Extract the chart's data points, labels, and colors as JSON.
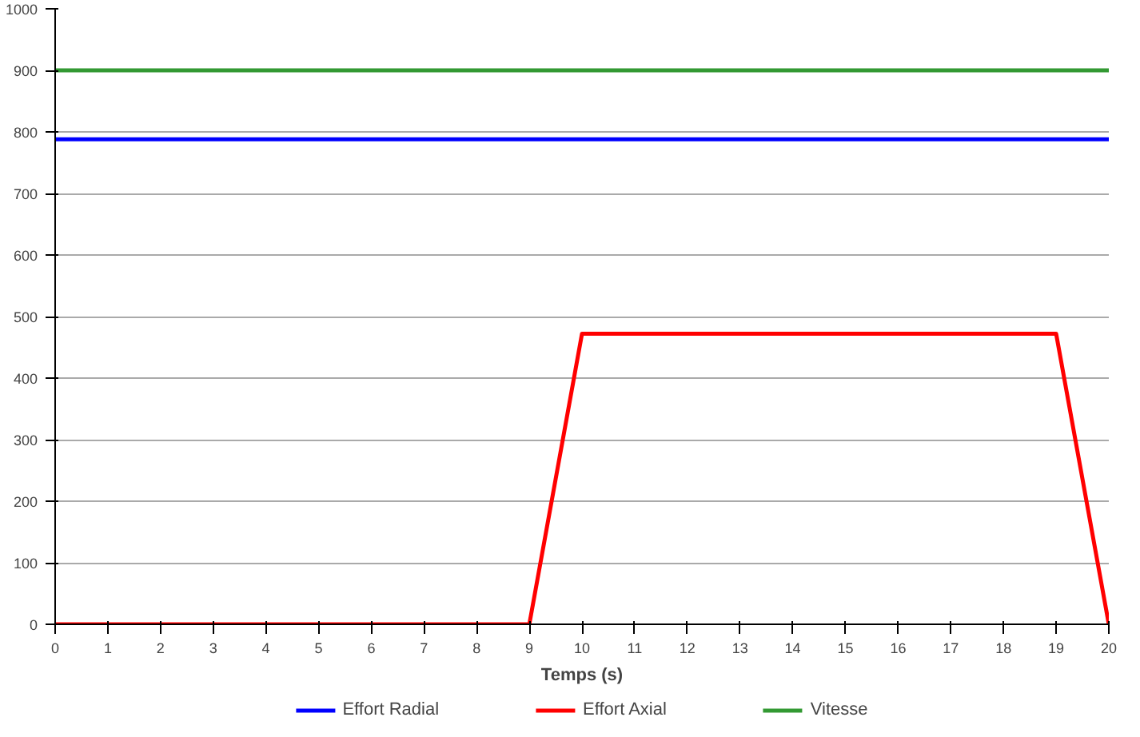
{
  "chart_data": {
    "type": "line",
    "xlabel": "Temps (s)",
    "xlim": [
      0,
      20
    ],
    "xticks": [
      0,
      1,
      2,
      3,
      4,
      5,
      6,
      7,
      8,
      9,
      10,
      11,
      12,
      13,
      14,
      15,
      16,
      17,
      18,
      19,
      20
    ],
    "ylim": [
      0,
      1000
    ],
    "yticks": [
      0,
      100,
      200,
      300,
      400,
      500,
      600,
      700,
      800,
      900,
      1000
    ],
    "grid": "y",
    "legend": "bottom",
    "marker": "none",
    "line_style": "solid",
    "series": [
      {
        "name": "Effort Radial",
        "color": "#0000ff",
        "x": [
          0,
          20
        ],
        "values": [
          788,
          788
        ]
      },
      {
        "name": "Effort Axial",
        "color": "#ff0000",
        "x": [
          0,
          9,
          10,
          19,
          20
        ],
        "values": [
          0,
          0,
          472,
          472,
          0
        ]
      },
      {
        "name": "Vitesse",
        "color": "#339933",
        "x": [
          0,
          20
        ],
        "values": [
          900,
          900
        ]
      }
    ]
  }
}
